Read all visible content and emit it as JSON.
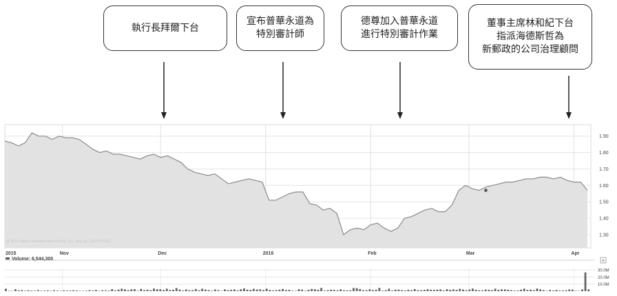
{
  "annotations": [
    {
      "lines": [
        "執行長拜爾下台"
      ],
      "date": "2015-12-01"
    },
    {
      "lines": [
        "宣布普華永道為",
        "特別審計師"
      ],
      "date": "2016-01-01"
    },
    {
      "lines": [
        "德尊加入普華永道",
        "進行特別審計作業"
      ],
      "date": "2016-02-04"
    },
    {
      "lines": [
        "董事主席林和紀下台",
        "指派海德斯哲為",
        "新郵政的公司治理顧問"
      ],
      "date": "2016-04-01"
    }
  ],
  "chart_data": {
    "type": "area",
    "x_labels": [
      "2015",
      "Nov",
      "Dec",
      "2016",
      "Feb",
      "Mar",
      "Apr"
    ],
    "y_ticks": [
      "1.90",
      "1.80",
      "1.70",
      "1.60",
      "1.50",
      "1.40",
      "1.30"
    ],
    "ylim": [
      1.22,
      1.97
    ],
    "grid": true,
    "copyright": "@ 2016 Yahoo! Southeast Asia Pte Ltd. (Co. Reg. No. 199700735D)",
    "volume_label": "Volume: 6,544,300",
    "volume_ticks": [
      "30.0M",
      "20.0M",
      "10.0M"
    ],
    "volume_ylim": [
      0,
      32
    ],
    "marker": {
      "x": "2016-03-06",
      "y": 1.57
    },
    "series": [
      {
        "x": [
          "2015-10-16",
          "2015-10-18",
          "2015-10-20",
          "2015-10-22",
          "2015-10-24",
          "2015-10-26",
          "2015-10-28",
          "2015-10-30",
          "2015-11-01",
          "2015-11-03",
          "2015-11-05",
          "2015-11-07",
          "2015-11-09",
          "2015-11-11",
          "2015-11-13",
          "2015-11-15",
          "2015-11-17",
          "2015-11-19",
          "2015-11-21",
          "2015-11-23",
          "2015-11-25",
          "2015-11-27",
          "2015-11-29",
          "2015-12-01",
          "2015-12-03",
          "2015-12-05",
          "2015-12-07",
          "2015-12-09",
          "2015-12-11",
          "2015-12-13",
          "2015-12-15",
          "2015-12-17",
          "2015-12-19",
          "2015-12-21",
          "2015-12-23",
          "2015-12-25",
          "2015-12-27",
          "2015-12-29",
          "2015-12-31",
          "2016-01-02",
          "2016-01-04",
          "2016-01-06",
          "2016-01-08",
          "2016-01-10",
          "2016-01-12",
          "2016-01-14",
          "2016-01-16",
          "2016-01-18",
          "2016-01-20",
          "2016-01-22",
          "2016-01-24",
          "2016-01-26",
          "2016-01-28",
          "2016-01-30",
          "2016-02-01",
          "2016-02-03",
          "2016-02-05",
          "2016-02-07",
          "2016-02-09",
          "2016-02-11",
          "2016-02-13",
          "2016-02-15",
          "2016-02-17",
          "2016-02-19",
          "2016-02-21",
          "2016-02-23",
          "2016-02-25",
          "2016-02-27",
          "2016-02-29",
          "2016-03-02",
          "2016-03-04",
          "2016-03-06",
          "2016-03-08",
          "2016-03-10",
          "2016-03-12",
          "2016-03-14",
          "2016-03-16",
          "2016-03-18",
          "2016-03-20",
          "2016-03-22",
          "2016-03-24",
          "2016-03-26",
          "2016-03-28",
          "2016-03-30",
          "2016-04-01",
          "2016-04-03",
          "2016-04-05"
        ],
        "values": [
          1.87,
          1.86,
          1.84,
          1.86,
          1.92,
          1.9,
          1.9,
          1.88,
          1.9,
          1.89,
          1.89,
          1.88,
          1.85,
          1.82,
          1.8,
          1.81,
          1.79,
          1.79,
          1.78,
          1.77,
          1.76,
          1.78,
          1.79,
          1.77,
          1.78,
          1.76,
          1.74,
          1.7,
          1.68,
          1.67,
          1.66,
          1.67,
          1.64,
          1.61,
          1.62,
          1.63,
          1.64,
          1.63,
          1.62,
          1.51,
          1.51,
          1.53,
          1.55,
          1.56,
          1.56,
          1.49,
          1.48,
          1.45,
          1.46,
          1.43,
          1.3,
          1.33,
          1.34,
          1.33,
          1.36,
          1.37,
          1.34,
          1.32,
          1.34,
          1.4,
          1.41,
          1.43,
          1.45,
          1.46,
          1.44,
          1.44,
          1.48,
          1.57,
          1.6,
          1.58,
          1.57,
          1.59,
          1.6,
          1.61,
          1.62,
          1.62,
          1.63,
          1.64,
          1.64,
          1.65,
          1.65,
          1.64,
          1.65,
          1.63,
          1.62,
          1.62,
          1.57
        ]
      }
    ],
    "volume": [
      3.5,
      0.6,
      0.5,
      2.7,
      1.3,
      1.6,
      0.7,
      1.4,
      0.9,
      0.8,
      1.6,
      0.7,
      0.9,
      1.2,
      0.6,
      1.4,
      0.9,
      0.5,
      1.2,
      0.9,
      0.9,
      1.4,
      1.0,
      0.6,
      0.5,
      0.8,
      1.6,
      0.9,
      1.8,
      0.5,
      1.4,
      1.2,
      0.9,
      2.9,
      1.2,
      2.2,
      3.5,
      2.6,
      1.5,
      2.6,
      2.8,
      0.7,
      3.2,
      1.5,
      2.1,
      1.5,
      3.7,
      2.6,
      2.6,
      1.7,
      3.5,
      1.6,
      1.9,
      4.5,
      2.3,
      1.0,
      2.4,
      1.5,
      1.6,
      3.0,
      1.3,
      3.5,
      2.3,
      1.6,
      0.8,
      2.4,
      1.5,
      0.5,
      2.5,
      1.5,
      1.9,
      2.4,
      1.2,
      2.7,
      3.9,
      2.1,
      1.8,
      3.3,
      2.3,
      2.6,
      1.6,
      3.5,
      1.8,
      1.1,
      1.6,
      2.0,
      3.1,
      1.7,
      1.9,
      0.8,
      0.6,
      2.7,
      2.2,
      0.7,
      1.9,
      3.1,
      2.8,
      1.9,
      4.6,
      0.9,
      1.5,
      2.2,
      1.8,
      1.3,
      2.6,
      1.4,
      1.2,
      1.4,
      4.5,
      4.3,
      3.0,
      1.5,
      1.5,
      2.7,
      1.6,
      1.9,
      4.7,
      0.8,
      1.5,
      3.5,
      1.0,
      2.2,
      2.2,
      1.5,
      1.1,
      2.0,
      1.5,
      3.0,
      1.5,
      1.4,
      1.9,
      2.8,
      2.0,
      1.8,
      2.2,
      2.5,
      1.1,
      2.8,
      1.9,
      2.5,
      1.8,
      3.3,
      2.3,
      1.4,
      2.3,
      3.7,
      2.0,
      1.4,
      1.3,
      2.2,
      1.9,
      1.5,
      3.5,
      1.9,
      2.5,
      2.6,
      1.9,
      1.5,
      0.9,
      1.1,
      2.1,
      3.6,
      1.7,
      2.2,
      1.5,
      3.7,
      2.6,
      1.6,
      0.6,
      1.8,
      1.0,
      1.8,
      0.9,
      1.1,
      1.4,
      2.4,
      2.2,
      0.6,
      0.5,
      2.5,
      26.5,
      2.6
    ]
  }
}
